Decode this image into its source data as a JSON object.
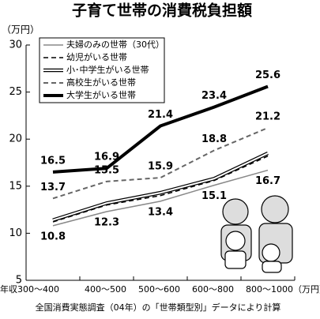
{
  "chart_data": {
    "type": "line",
    "title": "子育て世帯の消費税負担額",
    "y_label": "（万円）",
    "footnote": "全国消費実態調査（04年）の「世帯類型別」データにより計算",
    "categories": [
      "年収300～400",
      "400～500",
      "500～600",
      "600～800",
      "800～1000（万円）"
    ],
    "ylim": [
      5,
      30
    ],
    "yticks": [
      5,
      10,
      15,
      20,
      25,
      30
    ],
    "grid": false,
    "legend": "top-left",
    "series": [
      {
        "name": "夫婦のみの世帯（30代）",
        "color": "#888888",
        "style": "solid",
        "width": 1.5,
        "values": [
          10.8,
          12.3,
          13.4,
          15.1,
          16.7
        ],
        "show_labels": true,
        "label_position": "below"
      },
      {
        "name": "幼児がいる世帯",
        "color": "#000000",
        "style": "dashed",
        "width": 1.5,
        "values": [
          11.2,
          13.0,
          14.0,
          15.6,
          18.2
        ],
        "show_labels": false
      },
      {
        "name": "小･中学生がいる世帯",
        "color": "#000000",
        "style": "double",
        "width": 1.2,
        "values": [
          11.4,
          13.2,
          14.3,
          15.8,
          18.5
        ],
        "show_labels": false
      },
      {
        "name": "高校生がいる世帯",
        "color": "#666666",
        "style": "dashed",
        "width": 2,
        "values": [
          13.7,
          15.5,
          15.9,
          18.8,
          21.2
        ],
        "show_labels": true,
        "label_position": "above"
      },
      {
        "name": "大学生がいる世帯",
        "color": "#000000",
        "style": "solid",
        "width": 4,
        "values": [
          16.5,
          16.9,
          21.4,
          23.4,
          25.6
        ],
        "show_labels": true,
        "label_position": "above"
      }
    ]
  }
}
